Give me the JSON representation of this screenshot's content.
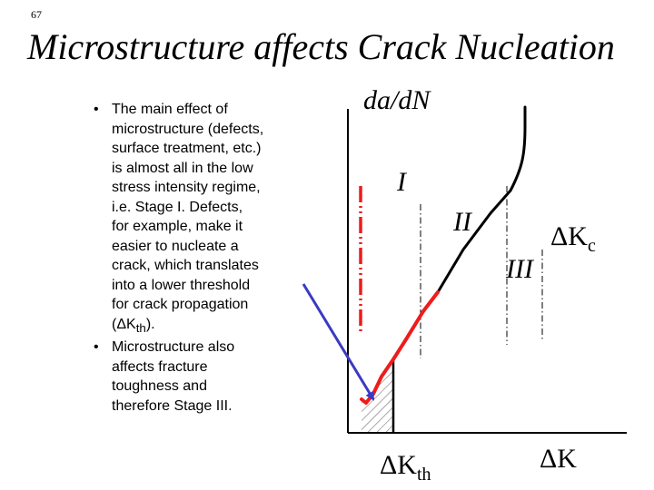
{
  "slide": {
    "number": "67",
    "title": "Microstructure affects Crack Nucleation"
  },
  "bullets": [
    {
      "pre": "The main effect of\nmicrostructure (defects,\nsurface treatment, etc.)\nis almost all in the low\nstress intensity regime,\ni.e. Stage I.  Defects,\nfor example, make it\neasier to nucleate a\ncrack, which translates\ninto a lower threshold\nfor crack propagation\n(ΔK",
      "sub": "th",
      "post": ")."
    },
    {
      "text": "Microstructure also\naffects fracture\ntoughness and\ntherefore Stage III."
    }
  ],
  "diagram": {
    "y_axis_label": "da/dN",
    "x_axis_label": "ΔK",
    "threshold_label": {
      "main": "ΔK",
      "sub": "th"
    },
    "critical_label": {
      "main": "ΔK",
      "sub": "c"
    },
    "stage_labels": [
      "I",
      "II",
      "III"
    ],
    "colors": {
      "axis": "#000000",
      "curve": "#000000",
      "red_curve": "#ee1c1c",
      "arrow": "#3a3ac4"
    }
  }
}
